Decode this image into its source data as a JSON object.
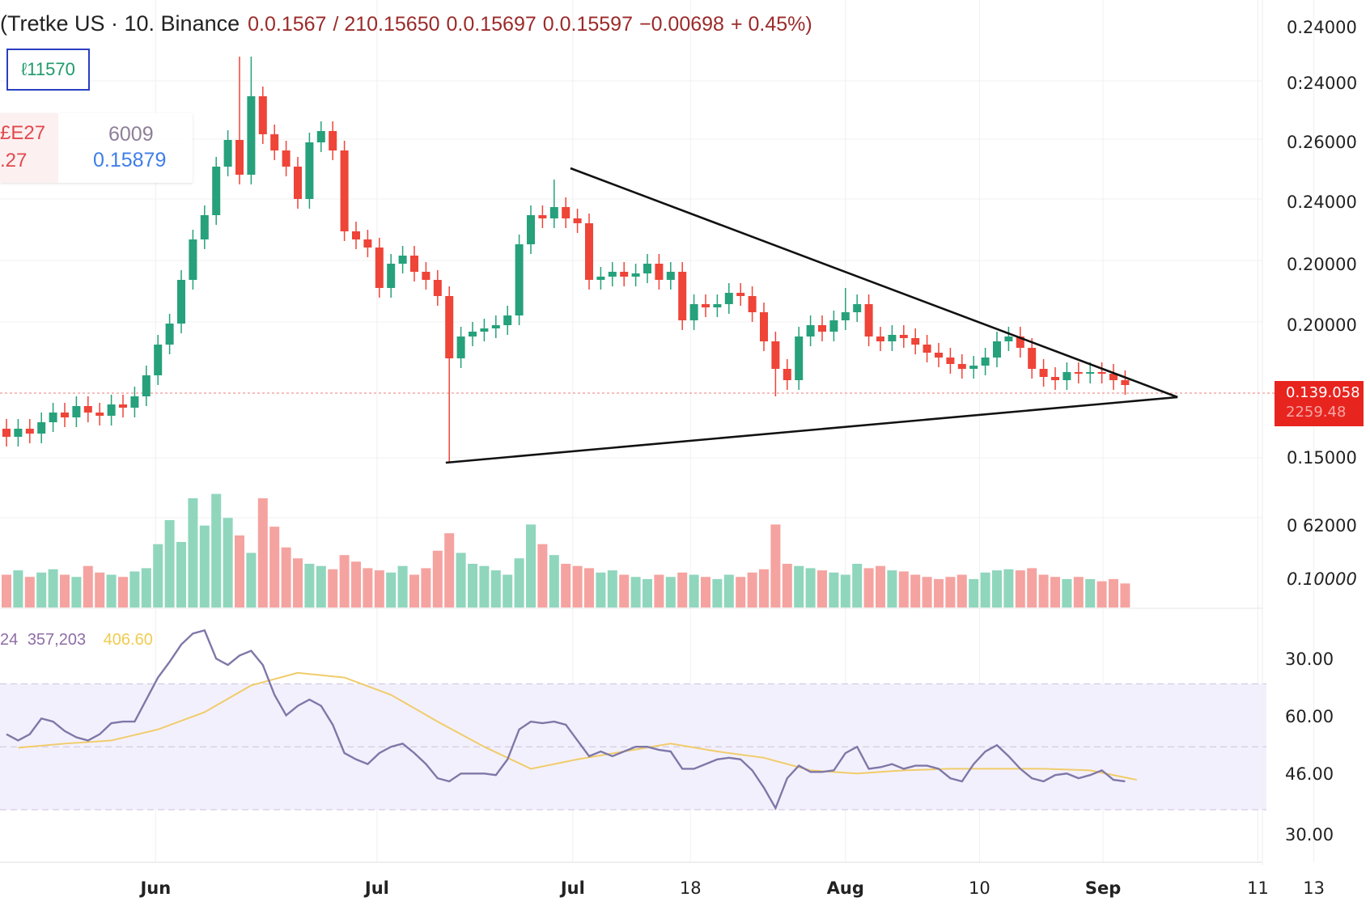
{
  "header": {
    "symbol": "(Tretke US · 10. Binance",
    "values": [
      "0.0.1567",
      "/ 210.15650",
      "0.0.15697",
      "0.0.15597",
      "−0.00698",
      "+ 0.45%)"
    ]
  },
  "overlay_box": {
    "value": "ℓ11570"
  },
  "legend": {
    "left_top": "£E27",
    "left_bottom": ".27",
    "value_1": "6009",
    "value_2": "0.15879"
  },
  "rsi_legend": {
    "value_1": "24",
    "value_2": "357,203",
    "value_3": "406.60"
  },
  "price_tag": {
    "price": "0.139.058",
    "sub": "2259.48"
  },
  "colors": {
    "up": "#26a17b",
    "down": "#ef4438",
    "up_volume": "#8fd6bd",
    "down_volume": "#f5a3a0",
    "rsi": "#7e78a8",
    "rsi_ma": "#f0cc6a",
    "rsi_band": "#f3f0fd",
    "trendline": "#111111",
    "price_tag": "#e8241f"
  },
  "chart_data": {
    "type": "candlestick",
    "title": "",
    "price_axis_labels": [
      "0.24000",
      "0:24000",
      "0.26000",
      "0.24000",
      "0.20000",
      "0.20000",
      "0.15000"
    ],
    "volume_axis_labels": [
      "0 62000",
      "0.10000"
    ],
    "rsi_axis_labels": [
      "30.00",
      "60.00",
      "46.00",
      "30.00"
    ],
    "x_labels": [
      {
        "label": "Jun",
        "bold": true,
        "index": 12.8
      },
      {
        "label": "Jul",
        "bold": true,
        "index": 31.8
      },
      {
        "label": "Jul",
        "bold": true,
        "index": 48.6
      },
      {
        "label": "18",
        "bold": false,
        "index": 58.7
      },
      {
        "label": "Aug",
        "bold": true,
        "index": 72
      },
      {
        "label": "10",
        "bold": false,
        "index": 83.5
      },
      {
        "label": "Sep",
        "bold": true,
        "index": 94.1
      },
      {
        "label": "11",
        "bold": false,
        "index": 107.4
      },
      {
        "label": "13",
        "bold": false,
        "index": 112.2
      }
    ],
    "first_open": 0.168,
    "close": [
      0.163,
      0.168,
      0.165,
      0.172,
      0.178,
      0.175,
      0.182,
      0.178,
      0.176,
      0.183,
      0.181,
      0.188,
      0.201,
      0.22,
      0.233,
      0.26,
      0.285,
      0.3,
      0.33,
      0.3465,
      0.325,
      0.3735,
      0.35,
      0.34,
      0.33,
      0.31,
      0.345,
      0.352,
      0.34,
      0.29,
      0.285,
      0.28,
      0.255,
      0.27,
      0.275,
      0.265,
      0.26,
      0.25,
      0.2115,
      0.225,
      0.228,
      0.23,
      0.232,
      0.238,
      0.282,
      0.3,
      0.298,
      0.305,
      0.298,
      0.295,
      0.26,
      0.262,
      0.265,
      0.262,
      0.264,
      0.27,
      0.26,
      0.265,
      0.235,
      0.245,
      0.243,
      0.245,
      0.252,
      0.25,
      0.24,
      0.222,
      0.205,
      0.198,
      0.225,
      0.232,
      0.228,
      0.235,
      0.24,
      0.245,
      0.225,
      0.222,
      0.226,
      0.224,
      0.22,
      0.215,
      0.212,
      0.208,
      0.205,
      0.207,
      0.212,
      0.222,
      0.225,
      0.218,
      0.205,
      0.2,
      0.198,
      0.203,
      0.202,
      0.203,
      0.202,
      0.198,
      0.195
    ],
    "wick_extremes": [
      {
        "index": 21,
        "high": 0.398
      },
      {
        "index": 20,
        "high": 0.398
      },
      {
        "index": 38,
        "low": 0.147
      },
      {
        "index": 47,
        "high": 0.322
      },
      {
        "index": 66,
        "low": 0.188
      },
      {
        "index": 72,
        "high": 0.255
      }
    ],
    "volume": [
      30,
      34,
      28,
      32,
      35,
      30,
      28,
      38,
      32,
      30,
      28,
      33,
      36,
      58,
      80,
      60,
      100,
      75,
      104,
      82,
      66,
      50,
      100,
      74,
      55,
      45,
      40,
      38,
      35,
      48,
      42,
      36,
      34,
      32,
      38,
      30,
      36,
      52,
      68,
      50,
      40,
      38,
      34,
      30,
      45,
      76,
      58,
      48,
      40,
      38,
      36,
      32,
      34,
      30,
      28,
      26,
      30,
      28,
      32,
      30,
      28,
      26,
      30,
      28,
      32,
      35,
      76,
      40,
      38,
      36,
      34,
      32,
      30,
      40,
      36,
      38,
      34,
      33,
      30,
      28,
      26,
      28,
      30,
      26,
      32,
      34,
      35,
      34,
      36,
      30,
      28,
      26,
      28,
      26,
      24,
      26,
      22
    ],
    "rsi": [
      54,
      52,
      54,
      59,
      58,
      55,
      53,
      52,
      54,
      57.5,
      58,
      58,
      65,
      72,
      77,
      82.5,
      86,
      87,
      78,
      76,
      79,
      80.5,
      76,
      66.5,
      60,
      63,
      65,
      63,
      57,
      48,
      46,
      44.5,
      48,
      50,
      51,
      48,
      44.5,
      40,
      39,
      41.5,
      41.5,
      41.5,
      41,
      46,
      55.5,
      58,
      57.5,
      58,
      57,
      52,
      47,
      48.5,
      47,
      48.5,
      50,
      50,
      49,
      48.5,
      43,
      43,
      44.5,
      46,
      46.5,
      46,
      42.5,
      37,
      30.5,
      40,
      44,
      42,
      42,
      42.5,
      48,
      50,
      43,
      43.5,
      44.5,
      43,
      44,
      44,
      43,
      40,
      39,
      44.5,
      48.5,
      50.5,
      47,
      43,
      40,
      39,
      41,
      41.5,
      40,
      41,
      42.5,
      39.5,
      39
    ],
    "rsi_ma_every_4": [
      49.7,
      51,
      52,
      55.5,
      61,
      69.5,
      73.5,
      72,
      66.5,
      58,
      50,
      43,
      46,
      48.5,
      51,
      48.5,
      46.5,
      42.5,
      41.5,
      42.5,
      43,
      43,
      43,
      42.5,
      39.5
    ],
    "rsi_band": [
      30,
      70
    ],
    "trendlines": [
      {
        "from": {
          "index": 48.4,
          "price": 0.329
        },
        "to": {
          "index": 100.5,
          "price": 0.1875
        }
      },
      {
        "from": {
          "index": 37.7,
          "price": 0.147
        },
        "to": {
          "index": 100.5,
          "price": 0.1875
        }
      }
    ],
    "last_price_line": 0.19,
    "grid": true
  }
}
